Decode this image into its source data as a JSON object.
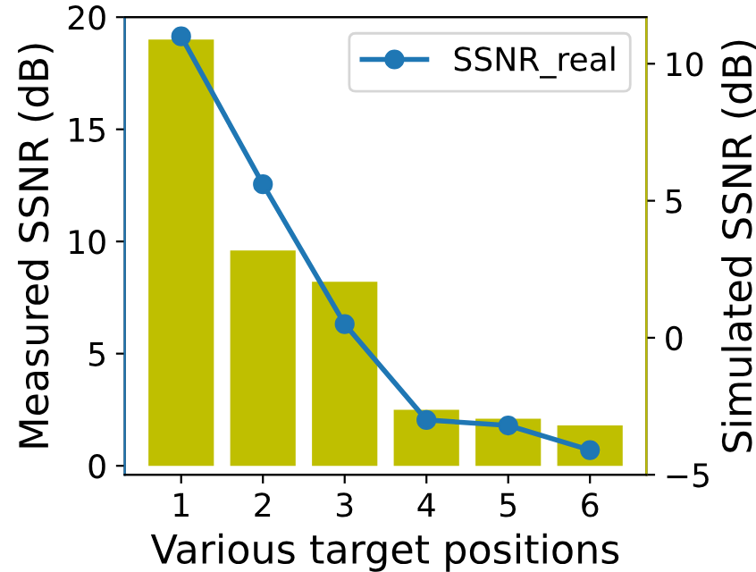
{
  "chart_data": {
    "type": "bar",
    "xlabel": "Various target positions",
    "ylabel": "Measured SSNR (dB)",
    "y2label": "Simulated SSNR (dB)",
    "categories": [
      "1",
      "2",
      "3",
      "4",
      "5",
      "6"
    ],
    "series": [
      {
        "color": "#bfbf00",
        "values": [
          19.0,
          9.6,
          8.2,
          2.5,
          2.1,
          1.8
        ]
      },
      {
        "type": "line",
        "name": "SSNR_real",
        "color": "#1f77b4",
        "axis": "y2",
        "values": [
          11.0,
          5.6,
          0.5,
          -3.0,
          -3.2,
          -4.1
        ]
      }
    ],
    "ylim": [
      -0.4,
      20
    ],
    "yticks": [
      0,
      5,
      10,
      15,
      20
    ],
    "y2lim": [
      -5,
      11.7
    ],
    "y2ticks": [
      -5,
      0,
      5,
      10
    ],
    "marker": "circle",
    "line_style": "solid",
    "legend": "top right",
    "grid": false
  }
}
